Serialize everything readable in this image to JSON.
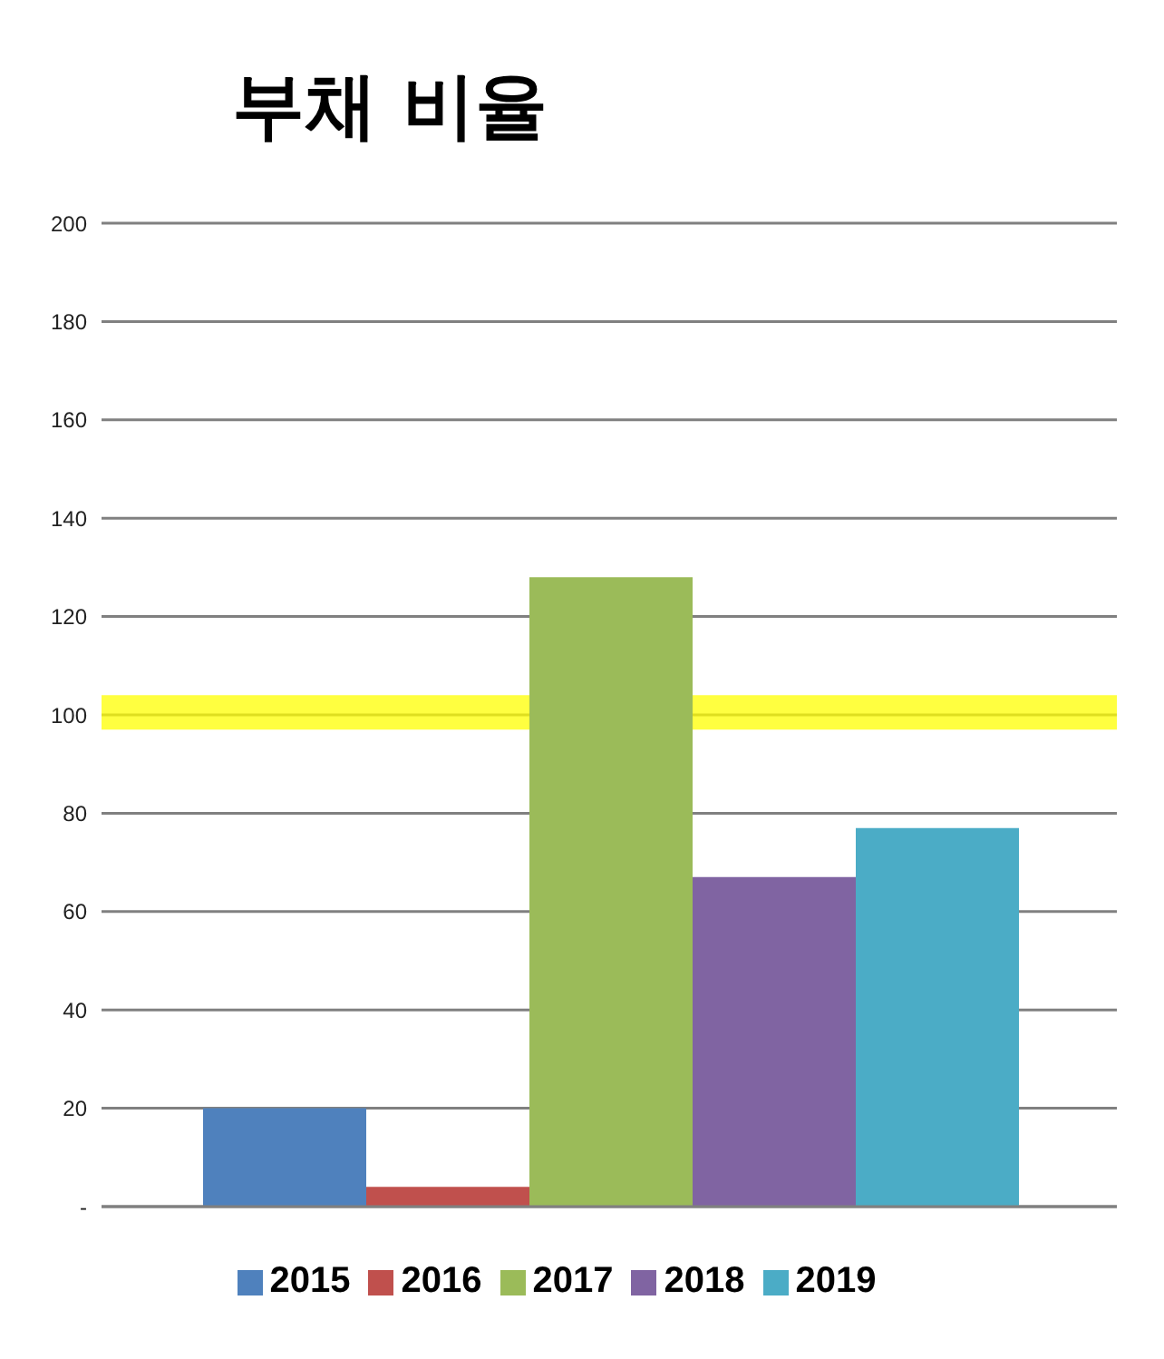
{
  "chart_data": {
    "type": "bar",
    "title": "부채 비율",
    "categories": [
      null
    ],
    "series": [
      {
        "name": "2015",
        "color": "#4f81bd",
        "values": [
          20
        ]
      },
      {
        "name": "2016",
        "color": "#c0504d",
        "values": [
          4
        ]
      },
      {
        "name": "2017",
        "color": "#9bbb59",
        "values": [
          128
        ]
      },
      {
        "name": "2018",
        "color": "#8064a2",
        "values": [
          67
        ]
      },
      {
        "name": "2019",
        "color": "#4bacc6",
        "values": [
          77
        ]
      }
    ],
    "ylim": [
      0,
      200
    ],
    "yticks": [
      {
        "value": 0,
        "label": "-"
      },
      20,
      40,
      60,
      80,
      100,
      120,
      140,
      160,
      180,
      200
    ],
    "grid": "y",
    "legend": "bottom",
    "bands": [
      {
        "axis": "y",
        "from": 97,
        "to": 104,
        "color": "#ffff00"
      }
    ]
  }
}
